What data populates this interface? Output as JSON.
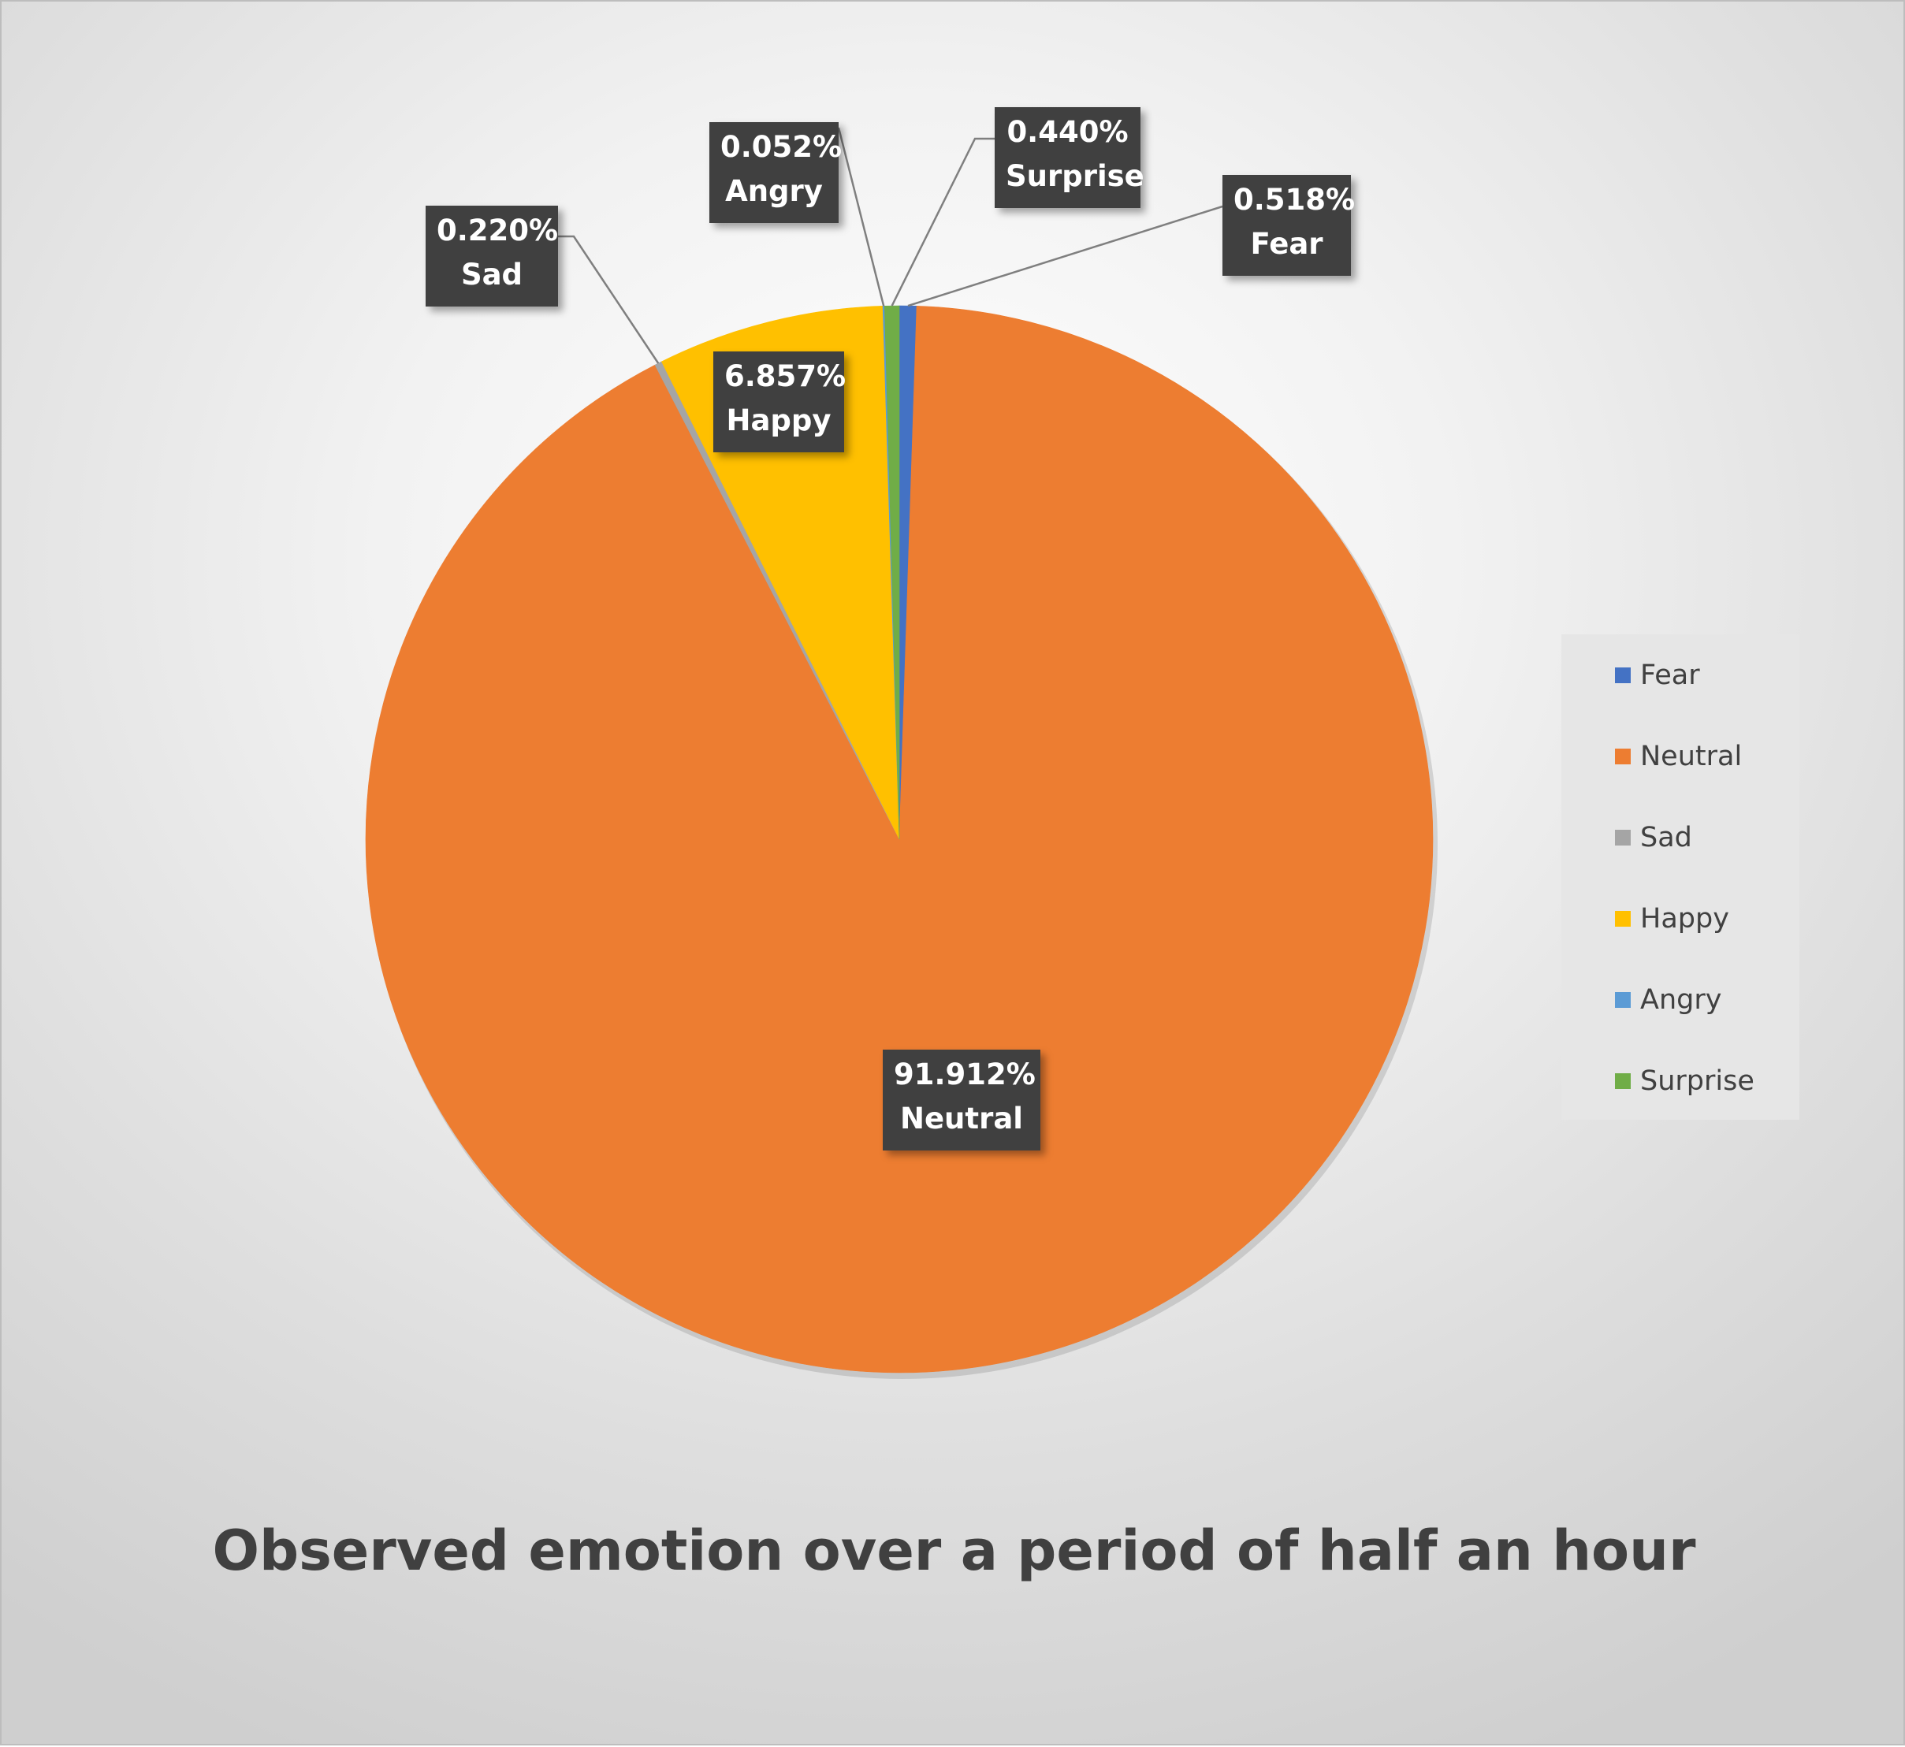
{
  "chart_data": {
    "type": "pie",
    "title": "Observed emotion over a period of half an hour",
    "categories": [
      "Fear",
      "Neutral",
      "Sad",
      "Happy",
      "Angry",
      "Surprise"
    ],
    "values": [
      0.518,
      91.912,
      0.22,
      6.857,
      0.052,
      0.44
    ],
    "unit": "%",
    "colors": [
      "#4472c4",
      "#ed7d31",
      "#a5a5a5",
      "#ffc000",
      "#5b9bd5",
      "#70ad47"
    ],
    "data_labels": [
      {
        "category": "Fear",
        "value_text": "0.518%",
        "name_text": "Fear"
      },
      {
        "category": "Neutral",
        "value_text": "91.912%",
        "name_text": "Neutral"
      },
      {
        "category": "Sad",
        "value_text": "0.220%",
        "name_text": "Sad"
      },
      {
        "category": "Happy",
        "value_text": "6.857%",
        "name_text": "Happy"
      },
      {
        "category": "Angry",
        "value_text": "0.052%",
        "name_text": "Angry"
      },
      {
        "category": "Surprise",
        "value_text": "0.440%",
        "name_text": "Surprise"
      }
    ],
    "legend": {
      "position": "right",
      "entries": [
        "Fear",
        "Neutral",
        "Sad",
        "Happy",
        "Angry",
        "Surprise"
      ]
    }
  }
}
